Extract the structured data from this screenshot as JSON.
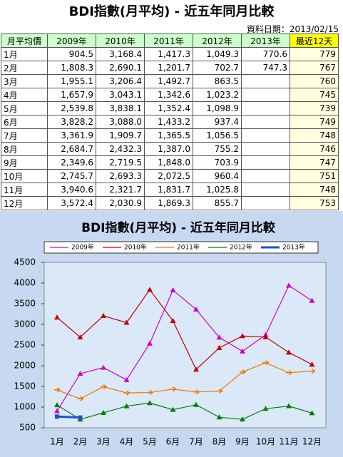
{
  "title": "BDI指數(月平均) - 近五年同月比較",
  "date_label": "資料日期：2013/02/15",
  "table": {
    "header": [
      "月平均價",
      "2009年",
      "2010年",
      "2011年",
      "2012年",
      "2013年",
      "最近12天"
    ],
    "rows": [
      [
        "1月",
        "904.5",
        "3,168.4",
        "1,417.3",
        "1,049.3",
        "770.6",
        "779"
      ],
      [
        "2月",
        "1,808.3",
        "2,690.1",
        "1,201.7",
        "702.7",
        "747.3",
        "767"
      ],
      [
        "3月",
        "1,955.1",
        "3,206.4",
        "1,492.7",
        "863.5",
        null,
        "760"
      ],
      [
        "4月",
        "1,657.9",
        "3,043.1",
        "1,342.6",
        "1,023.2",
        null,
        "745"
      ],
      [
        "5月",
        "2,539.8",
        "3,838.1",
        "1,352.4",
        "1,098.9",
        null,
        "739"
      ],
      [
        "6月",
        "3,828.2",
        "3,088.0",
        "1,433.2",
        "937.4",
        null,
        "749"
      ],
      [
        "7月",
        "3,361.9",
        "1,909.7",
        "1,365.5",
        "1,056.5",
        null,
        "748"
      ],
      [
        "8月",
        "2,684.7",
        "2,432.3",
        "1,387.0",
        "755.2",
        null,
        "746"
      ],
      [
        "9月",
        "2,349.6",
        "2,719.5",
        "1,848.0",
        "703.9",
        null,
        "747"
      ],
      [
        "10月",
        "2,745.7",
        "2,693.3",
        "2,072.5",
        "960.4",
        null,
        "751"
      ],
      [
        "11月",
        "3,940.6",
        "2,321.7",
        "1,831.7",
        "1,025.8",
        null,
        "748"
      ],
      [
        "12月",
        "3,572.4",
        "2,030.9",
        "1,869.3",
        "855.7",
        null,
        "753"
      ]
    ]
  },
  "chart_data": {
    "type": "line",
    "title": "BDI指數(月平均) - 近五年同月比較",
    "categories": [
      "1月",
      "2月",
      "3月",
      "4月",
      "5月",
      "6月",
      "7月",
      "8月",
      "9月",
      "10月",
      "11月",
      "12月"
    ],
    "ylim": [
      500,
      4500
    ],
    "yticks": [
      500,
      1000,
      1500,
      2000,
      2500,
      3000,
      3500,
      4000,
      4500
    ],
    "legend": "top",
    "series": [
      {
        "name": "2009年",
        "color": "#cc00cc",
        "values": [
          904.5,
          1808.3,
          1955.1,
          1657.9,
          2539.8,
          3828.2,
          3361.9,
          2684.7,
          2349.6,
          2745.7,
          3940.6,
          3572.4
        ]
      },
      {
        "name": "2010年",
        "color": "#c00000",
        "values": [
          3168.4,
          2690.1,
          3206.4,
          3043.1,
          3838.1,
          3088.0,
          1909.7,
          2432.3,
          2719.5,
          2693.3,
          2321.7,
          2030.9
        ]
      },
      {
        "name": "2011年",
        "color": "#f07800",
        "values": [
          1417.3,
          1201.7,
          1492.7,
          1342.6,
          1352.4,
          1433.2,
          1365.5,
          1387.0,
          1848.0,
          2072.5,
          1831.7,
          1869.3
        ]
      },
      {
        "name": "2012年",
        "color": "#008000",
        "values": [
          1049.3,
          702.7,
          863.5,
          1023.2,
          1098.9,
          937.4,
          1056.5,
          755.2,
          703.9,
          960.4,
          1025.8,
          855.7
        ]
      },
      {
        "name": "2013年",
        "color": "#1f4fd0",
        "values": [
          770.6,
          747.3,
          null,
          null,
          null,
          null,
          null,
          null,
          null,
          null,
          null,
          null
        ]
      }
    ]
  }
}
